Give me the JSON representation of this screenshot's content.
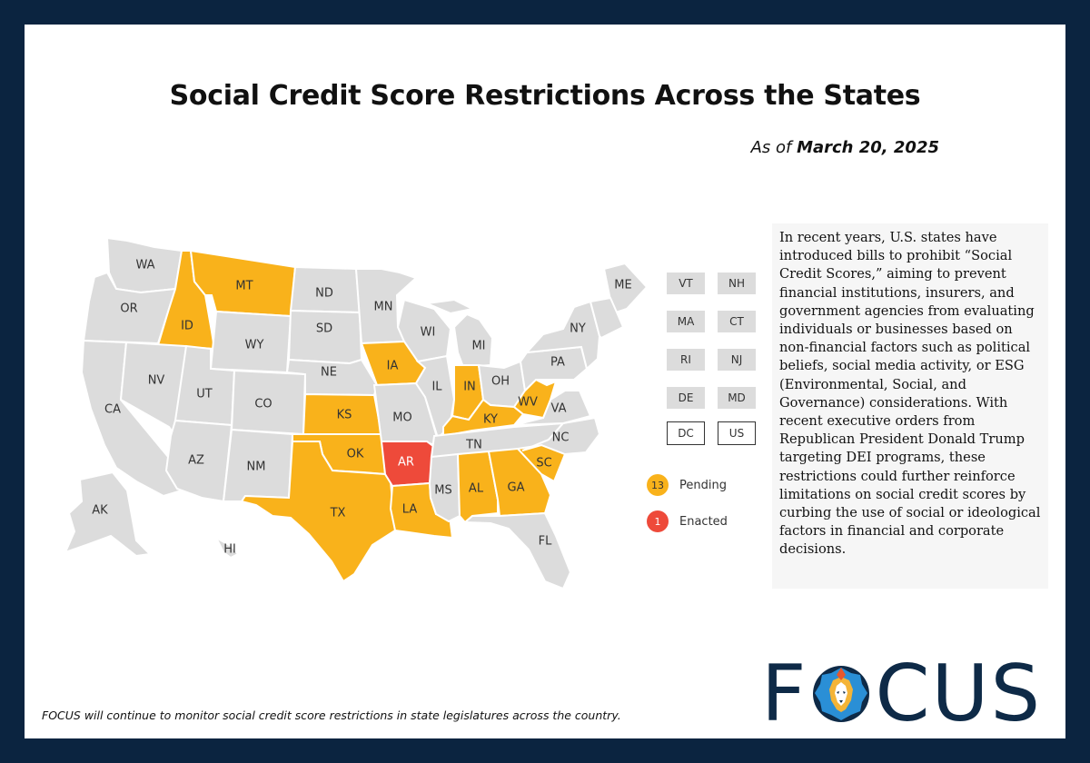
{
  "title": "Social Credit Score Restrictions Across the States",
  "subtitle": {
    "prefix": "As of ",
    "date": "March 20, 2025"
  },
  "colors": {
    "frame": "#0b2440",
    "neutral": "#dcdcdc",
    "pending": "#f9b21b",
    "enacted": "#ee4a3a",
    "logo": "#0e2a47"
  },
  "map": {
    "states": [
      {
        "abbr": "WA",
        "status": "none"
      },
      {
        "abbr": "OR",
        "status": "none"
      },
      {
        "abbr": "CA",
        "status": "none"
      },
      {
        "abbr": "ID",
        "status": "pending"
      },
      {
        "abbr": "NV",
        "status": "none"
      },
      {
        "abbr": "MT",
        "status": "pending"
      },
      {
        "abbr": "WY",
        "status": "none"
      },
      {
        "abbr": "UT",
        "status": "none"
      },
      {
        "abbr": "AZ",
        "status": "none"
      },
      {
        "abbr": "CO",
        "status": "none"
      },
      {
        "abbr": "NM",
        "status": "none"
      },
      {
        "abbr": "ND",
        "status": "none"
      },
      {
        "abbr": "SD",
        "status": "none"
      },
      {
        "abbr": "NE",
        "status": "none"
      },
      {
        "abbr": "KS",
        "status": "pending"
      },
      {
        "abbr": "OK",
        "status": "pending"
      },
      {
        "abbr": "TX",
        "status": "pending"
      },
      {
        "abbr": "MN",
        "status": "none"
      },
      {
        "abbr": "IA",
        "status": "pending"
      },
      {
        "abbr": "MO",
        "status": "none"
      },
      {
        "abbr": "AR",
        "status": "enacted"
      },
      {
        "abbr": "LA",
        "status": "pending"
      },
      {
        "abbr": "WI",
        "status": "none"
      },
      {
        "abbr": "IL",
        "status": "none"
      },
      {
        "abbr": "MI",
        "status": "none"
      },
      {
        "abbr": "IN",
        "status": "pending"
      },
      {
        "abbr": "OH",
        "status": "none"
      },
      {
        "abbr": "KY",
        "status": "pending"
      },
      {
        "abbr": "TN",
        "status": "none"
      },
      {
        "abbr": "MS",
        "status": "none"
      },
      {
        "abbr": "AL",
        "status": "pending"
      },
      {
        "abbr": "GA",
        "status": "pending"
      },
      {
        "abbr": "FL",
        "status": "none"
      },
      {
        "abbr": "SC",
        "status": "pending"
      },
      {
        "abbr": "NC",
        "status": "none"
      },
      {
        "abbr": "VA",
        "status": "none"
      },
      {
        "abbr": "WV",
        "status": "pending"
      },
      {
        "abbr": "PA",
        "status": "none"
      },
      {
        "abbr": "NY",
        "status": "none"
      },
      {
        "abbr": "ME",
        "status": "none"
      },
      {
        "abbr": "AK",
        "status": "none"
      },
      {
        "abbr": "HI",
        "status": "none"
      }
    ],
    "small_states": [
      {
        "abbr": "VT",
        "status": "none"
      },
      {
        "abbr": "NH",
        "status": "none"
      },
      {
        "abbr": "MA",
        "status": "none"
      },
      {
        "abbr": "CT",
        "status": "none"
      },
      {
        "abbr": "RI",
        "status": "none"
      },
      {
        "abbr": "NJ",
        "status": "none"
      },
      {
        "abbr": "DE",
        "status": "none"
      },
      {
        "abbr": "MD",
        "status": "none"
      },
      {
        "abbr": "DC",
        "status": "none"
      },
      {
        "abbr": "US",
        "status": "none"
      }
    ]
  },
  "legend": [
    {
      "count": "13",
      "label": "Pending"
    },
    {
      "count": "1",
      "label": "Enacted"
    }
  ],
  "note": "In recent years, U.S. states have introduced bills to prohibit “Social Credit Scores,” aiming to prevent financial institutions, insurers, and government agencies from evaluating individuals or businesses based on non-financial factors such as political beliefs, social media activity, or ESG (Environmental, Social, and Governance) considerations. With recent executive orders from Republican President Donald Trump targeting DEI programs, these restrictions could further reinforce limitations on social credit scores by curbing the use of social or ideological factors in financial and corporate decisions.",
  "footer": "FOCUS will continue to monitor social credit score restrictions in state legislatures across the country.",
  "logo": {
    "text": "FOCUS",
    "left": "F",
    "right": "CUS",
    "icon": "lion-head-icon"
  }
}
